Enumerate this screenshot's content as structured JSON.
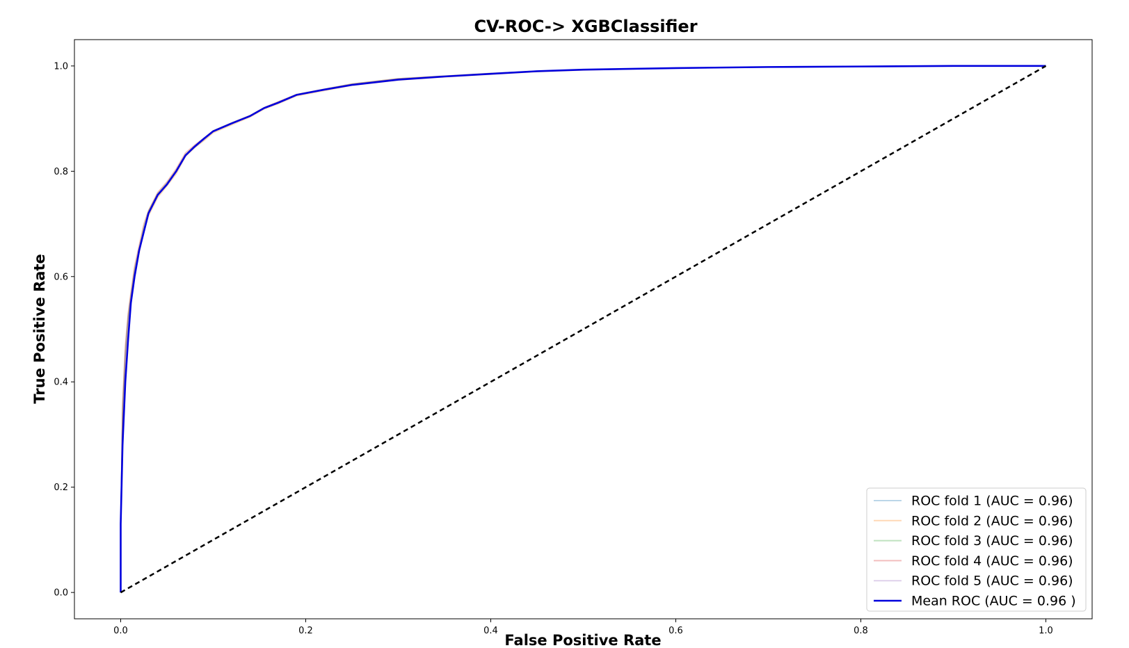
{
  "chart_data": {
    "type": "line",
    "title": "CV-ROC-> XGBClassifier",
    "xlabel": "False Positive Rate",
    "ylabel": "True Positive Rate",
    "xlim": [
      -0.05,
      1.05
    ],
    "ylim": [
      -0.05,
      1.05
    ],
    "xticks": [
      0.0,
      0.2,
      0.4,
      0.6,
      0.8,
      1.0
    ],
    "yticks": [
      0.0,
      0.2,
      0.4,
      0.6,
      0.8,
      1.0
    ],
    "xtick_labels": [
      "0.0",
      "0.2",
      "0.4",
      "0.6",
      "0.8",
      "1.0"
    ],
    "ytick_labels": [
      "0.0",
      "0.2",
      "0.4",
      "0.6",
      "0.8",
      "1.0"
    ],
    "grid": false,
    "legend_position": "bottom-right",
    "x": [
      0.0,
      0.0,
      0.002,
      0.005,
      0.008,
      0.011,
      0.015,
      0.02,
      0.025,
      0.03,
      0.04,
      0.05,
      0.06,
      0.07,
      0.08,
      0.09,
      0.1,
      0.12,
      0.14,
      0.155,
      0.17,
      0.19,
      0.22,
      0.25,
      0.3,
      0.35,
      0.4,
      0.45,
      0.5,
      0.6,
      0.7,
      0.8,
      0.9,
      1.0
    ],
    "series": [
      {
        "name": "ROC fold 1 (AUC = 0.96)",
        "color": "#1f77b4",
        "opacity": 0.3,
        "values": [
          0.0,
          0.13,
          0.34,
          0.45,
          0.52,
          0.56,
          0.61,
          0.65,
          0.69,
          0.72,
          0.755,
          0.775,
          0.8,
          0.83,
          0.845,
          0.86,
          0.875,
          0.89,
          0.905,
          0.92,
          0.93,
          0.945,
          0.955,
          0.965,
          0.975,
          0.98,
          0.985,
          0.99,
          0.993,
          0.996,
          0.998,
          0.999,
          1.0,
          1.0
        ]
      },
      {
        "name": "ROC fold 2 (AUC = 0.96)",
        "color": "#ff7f0e",
        "opacity": 0.3,
        "values": [
          0.0,
          0.12,
          0.33,
          0.44,
          0.51,
          0.555,
          0.605,
          0.645,
          0.685,
          0.715,
          0.75,
          0.772,
          0.795,
          0.828,
          0.845,
          0.858,
          0.873,
          0.888,
          0.903,
          0.918,
          0.928,
          0.943,
          0.953,
          0.963,
          0.973,
          0.979,
          0.984,
          0.989,
          0.992,
          0.996,
          0.998,
          0.999,
          1.0,
          1.0
        ]
      },
      {
        "name": "ROC fold 3 (AUC = 0.96)",
        "color": "#2ca02c",
        "opacity": 0.3,
        "values": [
          0.0,
          0.13,
          0.35,
          0.46,
          0.525,
          0.565,
          0.615,
          0.655,
          0.695,
          0.725,
          0.758,
          0.778,
          0.802,
          0.832,
          0.848,
          0.862,
          0.877,
          0.892,
          0.906,
          0.921,
          0.931,
          0.946,
          0.956,
          0.966,
          0.976,
          0.981,
          0.986,
          0.99,
          0.993,
          0.996,
          0.998,
          0.999,
          1.0,
          1.0
        ]
      },
      {
        "name": "ROC fold 4 (AUC = 0.96)",
        "color": "#d62728",
        "opacity": 0.3,
        "values": [
          0.0,
          0.13,
          0.36,
          0.47,
          0.53,
          0.57,
          0.62,
          0.66,
          0.7,
          0.725,
          0.76,
          0.78,
          0.805,
          0.835,
          0.85,
          0.863,
          0.877,
          0.892,
          0.906,
          0.921,
          0.932,
          0.946,
          0.956,
          0.966,
          0.976,
          0.981,
          0.986,
          0.99,
          0.993,
          0.996,
          0.998,
          0.999,
          1.0,
          1.0
        ]
      },
      {
        "name": "ROC fold 5 (AUC = 0.96)",
        "color": "#9467bd",
        "opacity": 0.3,
        "values": [
          0.0,
          0.12,
          0.34,
          0.45,
          0.515,
          0.56,
          0.61,
          0.65,
          0.69,
          0.72,
          0.753,
          0.775,
          0.8,
          0.83,
          0.846,
          0.86,
          0.875,
          0.89,
          0.905,
          0.92,
          0.93,
          0.945,
          0.955,
          0.965,
          0.975,
          0.98,
          0.985,
          0.99,
          0.993,
          0.996,
          0.998,
          0.999,
          1.0,
          1.0
        ]
      },
      {
        "name": "Mean ROC (AUC = 0.96 )",
        "color": "#0000dd",
        "opacity": 1.0,
        "values": [
          0.0,
          0.13,
          0.28,
          0.4,
          0.48,
          0.55,
          0.6,
          0.65,
          0.685,
          0.72,
          0.755,
          0.775,
          0.8,
          0.83,
          0.847,
          0.862,
          0.876,
          0.891,
          0.905,
          0.92,
          0.93,
          0.945,
          0.955,
          0.964,
          0.974,
          0.98,
          0.985,
          0.99,
          0.993,
          0.996,
          0.998,
          0.999,
          1.0,
          1.0
        ]
      }
    ],
    "reference_line": {
      "x": [
        0,
        1
      ],
      "values": [
        0,
        1
      ],
      "color": "#000000",
      "style": "dashed"
    }
  }
}
